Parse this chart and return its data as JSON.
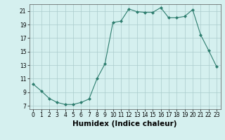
{
  "x": [
    0,
    1,
    2,
    3,
    4,
    5,
    6,
    7,
    8,
    9,
    10,
    11,
    12,
    13,
    14,
    15,
    16,
    17,
    18,
    19,
    20,
    21,
    22,
    23
  ],
  "y": [
    10.2,
    9.2,
    8.1,
    7.5,
    7.2,
    7.2,
    7.5,
    8.0,
    11.0,
    13.2,
    19.3,
    19.5,
    21.3,
    20.9,
    20.8,
    20.8,
    21.5,
    20.0,
    20.0,
    20.2,
    21.2,
    17.5,
    15.2,
    12.8
  ],
  "line_color": "#2d7d6e",
  "marker": "D",
  "marker_size": 2.0,
  "bg_color": "#d5f0ef",
  "grid_color": "#aacccc",
  "xlabel": "Humidex (Indice chaleur)",
  "xlim": [
    -0.5,
    23.5
  ],
  "ylim": [
    6.5,
    22.0
  ],
  "yticks": [
    7,
    9,
    11,
    13,
    15,
    17,
    19,
    21
  ],
  "xticks": [
    0,
    1,
    2,
    3,
    4,
    5,
    6,
    7,
    8,
    9,
    10,
    11,
    12,
    13,
    14,
    15,
    16,
    17,
    18,
    19,
    20,
    21,
    22,
    23
  ],
  "tick_fontsize": 5.5,
  "label_fontsize": 7.5
}
